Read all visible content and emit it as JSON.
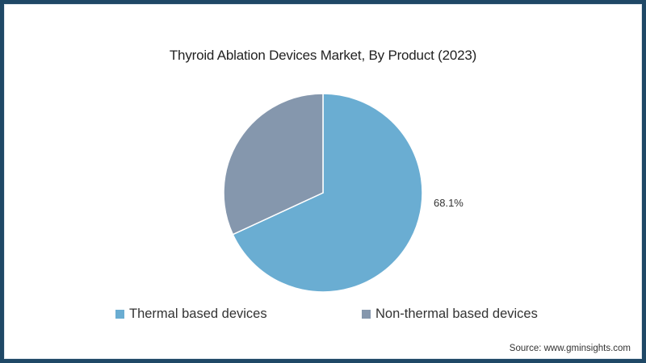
{
  "chart_data": {
    "type": "pie",
    "title": "Thyroid Ablation Devices Market, By Product (2023)",
    "categories": [
      "Thermal based devices",
      "Non-thermal based devices"
    ],
    "values": [
      68.1,
      31.9
    ],
    "colors": [
      "#6aadd2",
      "#8597ad"
    ],
    "data_labels": [
      "68.1%",
      ""
    ],
    "legend_position": "bottom",
    "source": "Source: www.gminsights.com"
  },
  "header": {
    "title": "Thyroid Ablation Devices Market, By Product (2023)"
  },
  "labels": {
    "thermal_pct": "68.1%"
  },
  "legend": {
    "items": [
      {
        "label": "Thermal based devices",
        "color": "#6aadd2"
      },
      {
        "label": "Non-thermal based devices",
        "color": "#8597ad"
      }
    ]
  },
  "footer": {
    "source": "Source: www.gminsights.com"
  },
  "colors": {
    "frame": "#1f4866"
  }
}
